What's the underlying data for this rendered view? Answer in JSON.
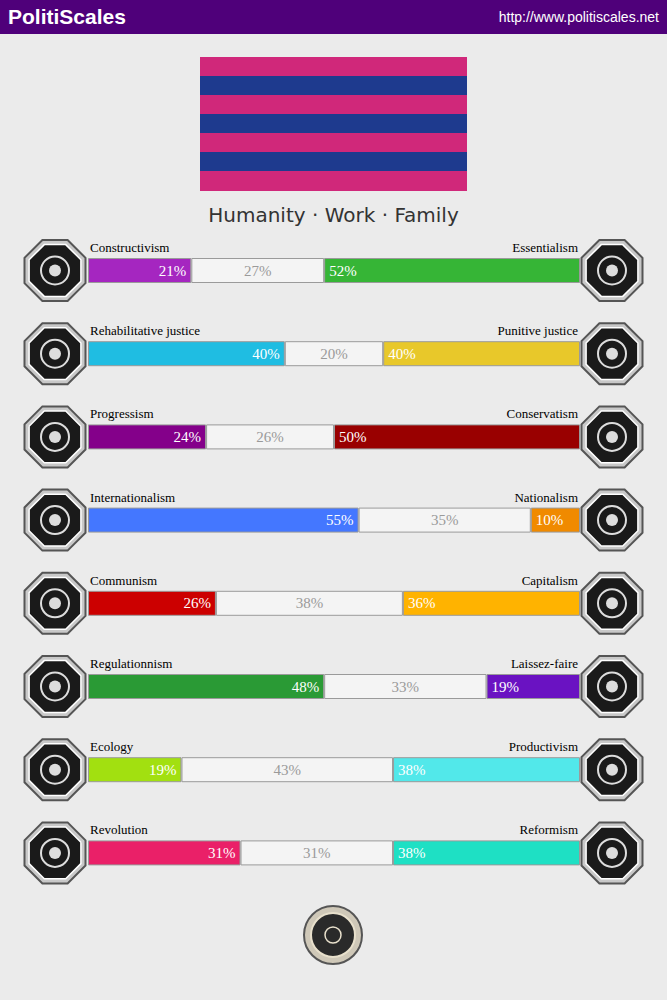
{
  "header": {
    "title": "PolitiScales",
    "url": "http://www.politiscales.net"
  },
  "flag": {
    "stripes": [
      "#d0287a",
      "#1e3a8e",
      "#d0287a",
      "#1e3a8e",
      "#d0287a",
      "#1e3a8e",
      "#d0287a"
    ]
  },
  "slogan": "Humanity · Work · Family",
  "chart_data": {
    "type": "bar",
    "orientation": "horizontal",
    "stacked": true,
    "data_labels": true,
    "tick_labels": false,
    "xlim": [
      0,
      100
    ],
    "rows": [
      {
        "left_label": "Constructivism",
        "right_label": "Essentialism",
        "values": [
          21,
          27,
          52
        ],
        "value_labels": [
          "21%",
          "27%",
          "52%"
        ],
        "colors": [
          "#a526c0",
          "#f4f4f4",
          "#36b536"
        ]
      },
      {
        "left_label": "Rehabilitative justice",
        "right_label": "Punitive justice",
        "values": [
          40,
          20,
          40
        ],
        "value_labels": [
          "40%",
          "20%",
          "40%"
        ],
        "colors": [
          "#1fbde2",
          "#f4f4f4",
          "#e8c82a"
        ]
      },
      {
        "left_label": "Progressism",
        "right_label": "Conservatism",
        "values": [
          24,
          26,
          50
        ],
        "value_labels": [
          "24%",
          "26%",
          "50%"
        ],
        "colors": [
          "#84008a",
          "#f4f4f4",
          "#990000"
        ]
      },
      {
        "left_label": "Internationalism",
        "right_label": "Nationalism",
        "values": [
          55,
          35,
          10
        ],
        "value_labels": [
          "55%",
          "35%",
          "10%"
        ],
        "colors": [
          "#4477ff",
          "#f4f4f4",
          "#f08a00"
        ]
      },
      {
        "left_label": "Communism",
        "right_label": "Capitalism",
        "values": [
          26,
          38,
          36
        ],
        "value_labels": [
          "26%",
          "38%",
          "36%"
        ],
        "colors": [
          "#cc0000",
          "#f4f4f4",
          "#ffb300"
        ]
      },
      {
        "left_label": "Regulationnism",
        "right_label": "Laissez-faire",
        "values": [
          48,
          33,
          19
        ],
        "value_labels": [
          "48%",
          "33%",
          "19%"
        ],
        "colors": [
          "#2a9a35",
          "#f4f4f4",
          "#6a12c2"
        ]
      },
      {
        "left_label": "Ecology",
        "right_label": "Productivism",
        "values": [
          19,
          43,
          38
        ],
        "value_labels": [
          "19%",
          "43%",
          "38%"
        ],
        "colors": [
          "#a2e010",
          "#f4f4f4",
          "#52e8ea"
        ]
      },
      {
        "left_label": "Revolution",
        "right_label": "Reformism",
        "values": [
          31,
          31,
          38
        ],
        "value_labels": [
          "31%",
          "31%",
          "38%"
        ],
        "colors": [
          "#ea2068",
          "#f4f4f4",
          "#1ee0c4"
        ]
      }
    ]
  }
}
